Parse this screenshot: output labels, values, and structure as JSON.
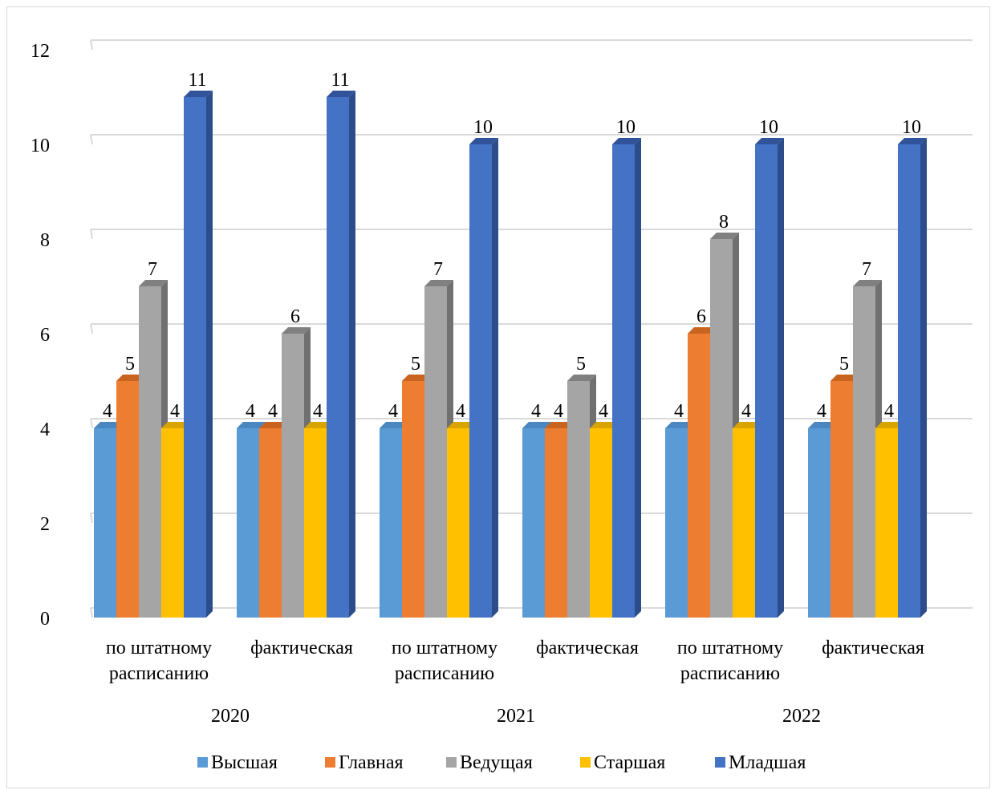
{
  "chart_data": {
    "type": "bar",
    "title": "",
    "xlabel": "",
    "ylabel": "",
    "ylim": [
      0,
      12
    ],
    "yticks": [
      0,
      2,
      4,
      6,
      8,
      10,
      12
    ],
    "grid": true,
    "legend_position": "bottom",
    "groups": [
      {
        "label": "2020",
        "categories": [
          "по штатному расписанию",
          "фактическая"
        ]
      },
      {
        "label": "2021",
        "categories": [
          "по штатному расписанию",
          "фактическая"
        ]
      },
      {
        "label": "2022",
        "categories": [
          "по штатному расписанию",
          "фактическая"
        ]
      }
    ],
    "categories": [
      [
        "по штатному",
        "расписанию"
      ],
      [
        "фактическая"
      ],
      [
        "по штатному",
        "расписанию"
      ],
      [
        "фактическая"
      ],
      [
        "по штатному",
        "расписанию"
      ],
      [
        "фактическая"
      ]
    ],
    "series": [
      {
        "name": "Высшая",
        "color": "#5b9bd5",
        "side": "#41719c",
        "top": "#4a86c0",
        "values": [
          4,
          4,
          4,
          4,
          4,
          4
        ]
      },
      {
        "name": "Главная",
        "color": "#ed7d31",
        "side": "#b85a1c",
        "top": "#c96420",
        "values": [
          5,
          4,
          5,
          4,
          6,
          5
        ]
      },
      {
        "name": "Ведущая",
        "color": "#a5a5a5",
        "side": "#707070",
        "top": "#808080",
        "values": [
          7,
          6,
          7,
          5,
          8,
          7
        ]
      },
      {
        "name": "Старшая",
        "color": "#ffc000",
        "side": "#c79400",
        "top": "#d9a400",
        "values": [
          4,
          4,
          4,
          4,
          4,
          4
        ]
      },
      {
        "name": "Младшая",
        "color": "#4472c4",
        "side": "#2c4d8a",
        "top": "#30539a",
        "values": [
          11,
          11,
          10,
          10,
          10,
          10
        ]
      }
    ]
  }
}
